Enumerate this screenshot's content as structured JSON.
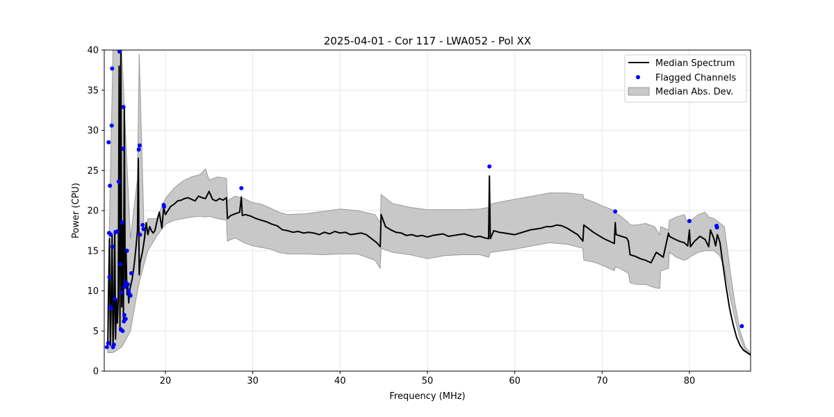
{
  "chart_data": {
    "type": "line",
    "title": "2025-04-01 - Cor 117 - LWA052 - Pol XX",
    "xlabel": "Frequency (MHz)",
    "ylabel": "Power (CPU)",
    "xlim": [
      13,
      87
    ],
    "ylim": [
      0,
      40
    ],
    "xticks": [
      20,
      30,
      40,
      50,
      60,
      70,
      80
    ],
    "yticks": [
      0,
      5,
      10,
      15,
      20,
      25,
      30,
      35,
      40
    ],
    "grid": true,
    "legend_position": "top-right",
    "colors": {
      "median": "#000000",
      "flagged": "#0000ff",
      "mad_fill": "#c8c8c8",
      "mad_edge": "#9a9a9a"
    },
    "series": [
      {
        "name": "Median Spectrum",
        "kind": "line",
        "x": [
          13.4,
          13.6,
          13.7,
          13.8,
          13.9,
          14.0,
          14.1,
          14.2,
          14.3,
          14.4,
          14.5,
          14.6,
          14.7,
          14.8,
          14.9,
          15.0,
          15.1,
          15.2,
          15.3,
          15.4,
          15.5,
          15.6,
          15.7,
          15.8,
          15.9,
          16.0,
          16.2,
          16.4,
          16.6,
          16.8,
          16.9,
          17.0,
          17.1,
          17.2,
          17.4,
          17.6,
          17.8,
          18.0,
          18.2,
          18.4,
          18.6,
          18.8,
          19.0,
          19.3,
          19.6,
          19.8,
          20.0,
          20.3,
          20.6,
          21.0,
          21.4,
          21.8,
          22.2,
          22.6,
          23.0,
          23.4,
          23.8,
          24.2,
          24.6,
          25.0,
          25.4,
          25.8,
          26.2,
          26.6,
          27.0,
          27.1,
          27.5,
          28.0,
          28.5,
          28.7,
          28.8,
          29.2,
          29.8,
          30.4,
          31.0,
          31.6,
          32.2,
          32.8,
          33.4,
          34.0,
          34.6,
          35.2,
          35.8,
          36.4,
          37.0,
          37.6,
          38.2,
          38.8,
          39.4,
          40.0,
          40.6,
          41.2,
          41.8,
          42.4,
          43.0,
          43.6,
          44.2,
          44.6,
          44.7,
          45.2,
          45.8,
          46.4,
          47.0,
          47.6,
          48.2,
          48.8,
          49.4,
          50.0,
          50.6,
          51.2,
          51.8,
          52.4,
          53.0,
          53.6,
          54.2,
          54.8,
          55.4,
          56.0,
          56.6,
          57.0,
          57.1,
          57.2,
          57.6,
          58.2,
          58.8,
          59.4,
          60.0,
          60.6,
          61.2,
          61.8,
          62.4,
          63.0,
          63.6,
          64.2,
          64.8,
          65.4,
          66.0,
          66.6,
          67.2,
          67.8,
          67.9,
          68.4,
          69.0,
          69.6,
          70.2,
          70.8,
          71.4,
          71.5,
          71.6,
          72.2,
          72.8,
          73.0,
          73.2,
          73.8,
          74.4,
          75.0,
          75.6,
          76.2,
          76.6,
          77.0,
          77.6,
          77.7,
          78.2,
          78.8,
          79.4,
          79.8,
          80.0,
          80.1,
          80.6,
          81.2,
          81.8,
          82.2,
          82.4,
          82.8,
          83.0,
          83.2,
          83.5,
          83.8,
          84.2,
          84.6,
          85.0,
          85.4,
          85.8,
          86.2,
          86.6,
          87.0
        ],
        "y": [
          3.0,
          16.5,
          3.2,
          9.0,
          17.0,
          2.9,
          7.0,
          17.5,
          4.0,
          9.0,
          6.0,
          9.0,
          38.0,
          5.0,
          40.0,
          8.0,
          18.5,
          6.5,
          33.0,
          10.5,
          15.0,
          9.5,
          10.5,
          8.5,
          10.0,
          10.5,
          11.5,
          13.0,
          15.0,
          17.5,
          26.5,
          12.0,
          13.5,
          14.0,
          15.0,
          16.5,
          18.5,
          17.0,
          18.0,
          17.5,
          17.2,
          17.5,
          18.5,
          19.8,
          17.8,
          20.4,
          19.5,
          20.0,
          20.5,
          20.8,
          21.2,
          21.3,
          21.5,
          21.6,
          21.4,
          21.2,
          21.8,
          21.6,
          21.5,
          22.4,
          21.4,
          21.2,
          21.5,
          21.3,
          21.6,
          19.0,
          19.4,
          19.6,
          19.8,
          21.7,
          19.4,
          19.5,
          19.3,
          19.0,
          18.8,
          18.6,
          18.3,
          18.1,
          17.6,
          17.5,
          17.3,
          17.4,
          17.2,
          17.3,
          17.2,
          17.0,
          17.3,
          17.1,
          17.4,
          17.2,
          17.3,
          17.0,
          17.1,
          17.2,
          17.0,
          16.5,
          16.0,
          15.5,
          19.5,
          18.0,
          17.6,
          17.3,
          17.2,
          16.9,
          17.0,
          16.8,
          16.9,
          16.7,
          16.9,
          17.0,
          17.1,
          16.8,
          16.9,
          17.0,
          17.1,
          16.9,
          16.7,
          16.8,
          16.6,
          16.5,
          24.3,
          16.5,
          17.5,
          17.3,
          17.2,
          17.1,
          17.0,
          17.2,
          17.4,
          17.6,
          17.7,
          17.8,
          18.0,
          18.0,
          18.2,
          18.1,
          17.8,
          17.4,
          17.0,
          16.2,
          18.2,
          17.8,
          17.3,
          16.9,
          16.5,
          16.2,
          15.9,
          18.5,
          17.0,
          16.8,
          16.6,
          16.2,
          14.5,
          14.3,
          14.0,
          13.8,
          13.5,
          14.8,
          14.5,
          14.2,
          17.2,
          16.8,
          16.5,
          16.2,
          16.0,
          15.6,
          17.6,
          15.5,
          16.2,
          16.8,
          16.4,
          15.5,
          17.6,
          16.5,
          15.6,
          17.0,
          16.0,
          13.5,
          10.5,
          7.8,
          5.8,
          4.2,
          3.2,
          2.6,
          2.3,
          2.0
        ]
      },
      {
        "name": "Flagged Channels",
        "kind": "scatter",
        "x": [
          13.3,
          13.45,
          13.5,
          13.55,
          13.6,
          13.65,
          13.7,
          13.75,
          13.8,
          13.85,
          13.9,
          13.95,
          14.0,
          14.1,
          14.2,
          14.3,
          14.5,
          14.65,
          14.75,
          14.85,
          14.9,
          15.0,
          15.05,
          15.1,
          15.15,
          15.2,
          15.25,
          15.3,
          15.35,
          15.4,
          15.45,
          15.5,
          15.6,
          15.7,
          15.8,
          15.9,
          16.0,
          16.1,
          16.95,
          17.05,
          17.1,
          17.4,
          17.5,
          19.8,
          19.85,
          28.7,
          57.1,
          71.5,
          80.0,
          83.1,
          83.15,
          86.0
        ],
        "y": [
          3.0,
          3.5,
          28.5,
          17.2,
          11.7,
          23.1,
          8.0,
          17.0,
          7.8,
          30.6,
          37.7,
          15.5,
          3.0,
          3.3,
          9.0,
          17.3,
          17.4,
          23.6,
          39.8,
          13.3,
          5.2,
          9.8,
          18.5,
          5.0,
          27.7,
          32.9,
          6.2,
          7.0,
          10.5,
          11.0,
          6.5,
          11.0,
          15.0,
          10.8,
          10.0,
          9.6,
          9.4,
          12.2,
          27.6,
          28.1,
          17.0,
          18.2,
          17.7,
          20.7,
          20.5,
          22.8,
          25.5,
          19.9,
          18.7,
          18.1,
          17.9,
          5.6
        ]
      },
      {
        "name": "Median Abs. Dev.",
        "kind": "band",
        "x": [
          13.4,
          14.0,
          15.0,
          16.0,
          16.8,
          17.0,
          17.6,
          18.0,
          19.0,
          20.0,
          21.0,
          22.0,
          23.0,
          24.0,
          24.6,
          25.0,
          26.0,
          27.0,
          27.1,
          28.0,
          29.0,
          30.0,
          31.0,
          32.0,
          33.0,
          34.0,
          36.0,
          38.0,
          40.0,
          42.0,
          44.0,
          44.6,
          44.7,
          46.0,
          48.0,
          50.0,
          52.0,
          54.0,
          56.0,
          57.0,
          57.2,
          58.0,
          60.0,
          62.0,
          64.0,
          66.0,
          67.8,
          67.9,
          69.0,
          70.0,
          71.4,
          71.5,
          72.0,
          73.0,
          73.2,
          74.0,
          75.0,
          76.0,
          76.6,
          76.7,
          77.6,
          77.7,
          78.5,
          79.4,
          79.8,
          80.0,
          81.0,
          81.8,
          82.2,
          82.8,
          83.4,
          84.0,
          84.6,
          85.2,
          85.8,
          86.4,
          87.0
        ],
        "upper": [
          8.0,
          40.0,
          40.0,
          16.5,
          24.0,
          39.5,
          16.0,
          19.0,
          19.0,
          21.5,
          22.8,
          23.7,
          24.2,
          24.5,
          25.2,
          23.8,
          24.2,
          24.0,
          21.2,
          21.8,
          21.5,
          21.0,
          20.8,
          20.3,
          19.8,
          19.5,
          19.6,
          19.9,
          20.2,
          20.0,
          19.5,
          18.5,
          22.0,
          20.9,
          20.4,
          20.1,
          20.1,
          20.1,
          20.2,
          20.4,
          20.8,
          21.0,
          21.4,
          21.8,
          22.2,
          22.2,
          22.0,
          21.5,
          21.1,
          20.6,
          20.0,
          19.7,
          19.4,
          18.5,
          18.2,
          18.2,
          18.4,
          18.0,
          17.0,
          18.0,
          17.6,
          18.8,
          19.2,
          19.5,
          18.5,
          18.6,
          19.5,
          19.8,
          19.2,
          19.0,
          18.5,
          18.0,
          13.0,
          8.5,
          5.0,
          3.0,
          2.2
        ],
        "lower": [
          2.3,
          2.3,
          3.0,
          5.0,
          10.0,
          11.0,
          13.5,
          15.0,
          16.8,
          18.3,
          18.8,
          19.0,
          19.2,
          19.3,
          19.2,
          19.3,
          19.0,
          18.8,
          16.2,
          16.6,
          16.0,
          15.6,
          15.4,
          15.2,
          14.8,
          14.6,
          14.6,
          14.5,
          14.6,
          14.6,
          13.8,
          12.8,
          15.3,
          14.8,
          14.5,
          14.0,
          14.4,
          14.5,
          14.5,
          14.2,
          14.8,
          14.9,
          15.2,
          15.6,
          16.0,
          15.8,
          15.3,
          13.8,
          13.6,
          13.2,
          12.5,
          13.0,
          12.8,
          12.2,
          11.0,
          10.8,
          10.8,
          10.4,
          10.3,
          12.5,
          12.8,
          14.8,
          14.2,
          13.8,
          14.0,
          14.2,
          14.8,
          15.0,
          15.0,
          15.0,
          14.5,
          13.0,
          9.5,
          6.5,
          4.0,
          2.6,
          2.0
        ]
      }
    ]
  }
}
